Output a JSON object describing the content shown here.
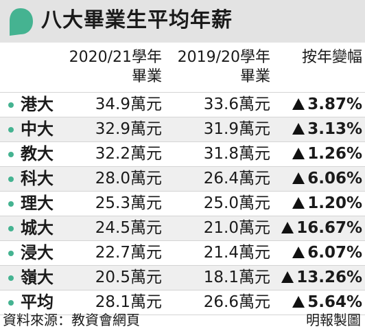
{
  "title": "八大畢業生平均年薪",
  "headers": {
    "col1_line1": "2020/21學年",
    "col1_line2": "畢業",
    "col2_line1": "2019/20學年",
    "col2_line2": "畢業",
    "col3": "按年變幅"
  },
  "rows": [
    {
      "name": "港大",
      "v2021": "34.9萬元",
      "v1920": "33.6萬元",
      "change": "3.87%"
    },
    {
      "name": "中大",
      "v2021": "32.9萬元",
      "v1920": "31.9萬元",
      "change": "3.13%"
    },
    {
      "name": "教大",
      "v2021": "32.2萬元",
      "v1920": "31.8萬元",
      "change": "1.26%"
    },
    {
      "name": "科大",
      "v2021": "28.0萬元",
      "v1920": "26.4萬元",
      "change": "6.06%"
    },
    {
      "name": "理大",
      "v2021": "25.3萬元",
      "v1920": "25.0萬元",
      "change": "1.20%"
    },
    {
      "name": "城大",
      "v2021": "24.5萬元",
      "v1920": "21.0萬元",
      "change": "16.67%"
    },
    {
      "name": "浸大",
      "v2021": "22.7萬元",
      "v1920": "21.4萬元",
      "change": "6.07%"
    },
    {
      "name": "嶺大",
      "v2021": "20.5萬元",
      "v1920": "18.1萬元",
      "change": "13.26%"
    },
    {
      "name": "平均",
      "v2021": "28.1萬元",
      "v1920": "26.6萬元",
      "change": "5.64%"
    }
  ],
  "footer": {
    "source": "資料來源：教資會網頁",
    "credit": "明報製圖"
  },
  "colors": {
    "accent": "#45b391",
    "title_bg": "#e3e3e3",
    "row_alt_bg": "#efefef"
  },
  "icons": {
    "title": "speech-bubble-icon",
    "bullet": "dot-bullet-icon",
    "increase": "triangle-up-icon"
  }
}
